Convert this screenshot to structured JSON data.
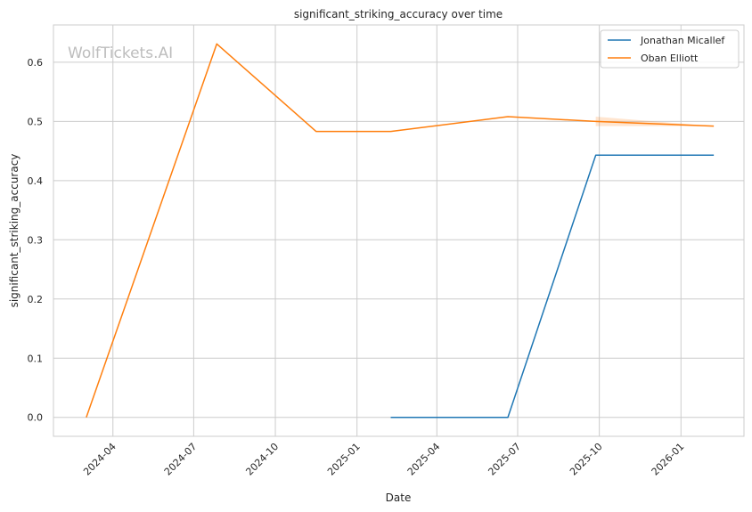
{
  "chart_data": {
    "type": "line",
    "title": "significant_striking_accuracy over time",
    "xlabel": "Date",
    "ylabel": "significant_striking_accuracy",
    "watermark": "WolfTickets.AI",
    "grid": true,
    "legend_position": "top-right",
    "x_range": [
      "2024-01-25",
      "2026-03-13"
    ],
    "ylim": [
      -0.032,
      0.663
    ],
    "x_ticks": [
      "2024-04-01",
      "2024-07-01",
      "2024-10-01",
      "2025-01-01",
      "2025-04-01",
      "2025-07-01",
      "2025-10-01",
      "2026-01-01"
    ],
    "x_tick_labels": [
      "2024-04",
      "2024-07",
      "2024-10",
      "2025-01",
      "2025-04",
      "2025-07",
      "2025-10",
      "2026-01"
    ],
    "y_ticks": [
      0.0,
      0.1,
      0.2,
      0.3,
      0.4,
      0.5,
      0.6
    ],
    "y_tick_labels": [
      "0.0",
      "0.1",
      "0.2",
      "0.3",
      "0.4",
      "0.5",
      "0.6"
    ],
    "series": [
      {
        "name": "Jonathan Micallef",
        "color": "#1f77b4",
        "x": [
          "2025-02-08",
          "2025-06-20",
          "2025-09-27",
          "2026-02-07"
        ],
        "y": [
          0.0,
          0.0,
          0.443,
          0.443
        ]
      },
      {
        "name": "Oban Elliott",
        "color": "#ff7f0e",
        "x": [
          "2024-03-02",
          "2024-07-27",
          "2024-11-16",
          "2025-02-08",
          "2025-06-20",
          "2025-09-27",
          "2026-02-07"
        ],
        "y": [
          0.0,
          0.631,
          0.483,
          0.483,
          0.508,
          0.5,
          0.492
        ],
        "band": {
          "x": [
            "2025-09-27",
            "2026-02-07"
          ],
          "lower": [
            0.492,
            0.492
          ],
          "upper": [
            0.508,
            0.492
          ]
        }
      }
    ]
  }
}
